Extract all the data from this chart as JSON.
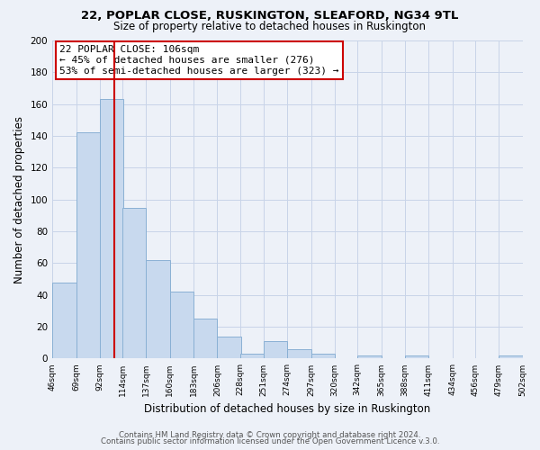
{
  "title1": "22, POPLAR CLOSE, RUSKINGTON, SLEAFORD, NG34 9TL",
  "title2": "Size of property relative to detached houses in Ruskington",
  "xlabel": "Distribution of detached houses by size in Ruskington",
  "ylabel": "Number of detached properties",
  "bar_left_edges": [
    46,
    69,
    92,
    114,
    137,
    160,
    183,
    206,
    228,
    251,
    274,
    297,
    320,
    342,
    365,
    388,
    411,
    434,
    456,
    479
  ],
  "bar_heights": [
    48,
    142,
    163,
    95,
    62,
    42,
    25,
    14,
    3,
    11,
    6,
    3,
    0,
    2,
    0,
    2,
    0,
    0,
    0,
    2
  ],
  "bin_width": 23,
  "bar_color": "#c8d9ee",
  "bar_edge_color": "#8ab0d4",
  "tick_labels": [
    "46sqm",
    "69sqm",
    "92sqm",
    "114sqm",
    "137sqm",
    "160sqm",
    "183sqm",
    "206sqm",
    "228sqm",
    "251sqm",
    "274sqm",
    "297sqm",
    "320sqm",
    "342sqm",
    "365sqm",
    "388sqm",
    "411sqm",
    "434sqm",
    "456sqm",
    "479sqm",
    "502sqm"
  ],
  "vline_x": 106,
  "vline_color": "#cc0000",
  "annotation_line1": "22 POPLAR CLOSE: 106sqm",
  "annotation_line2": "← 45% of detached houses are smaller (276)",
  "annotation_line3": "53% of semi-detached houses are larger (323) →",
  "annotation_box_color": "#cc0000",
  "annotation_box_fill": "#ffffff",
  "ylim": [
    0,
    200
  ],
  "yticks": [
    0,
    20,
    40,
    60,
    80,
    100,
    120,
    140,
    160,
    180,
    200
  ],
  "grid_color": "#c8d4e8",
  "bg_color": "#edf1f8",
  "footer1": "Contains HM Land Registry data © Crown copyright and database right 2024.",
  "footer2": "Contains public sector information licensed under the Open Government Licence v.3.0."
}
